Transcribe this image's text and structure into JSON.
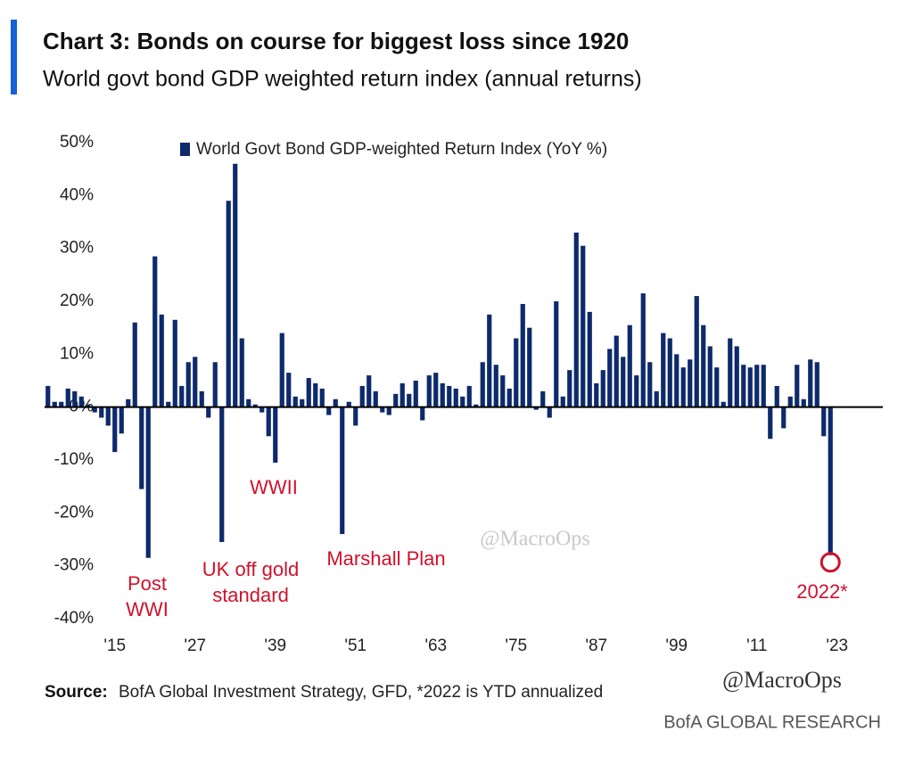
{
  "chart_data": {
    "type": "bar",
    "title": "Chart 3: Bonds on course for biggest loss since 1920",
    "subtitle": "World govt bond GDP weighted return index (annual returns)",
    "x": [
      1905,
      1906,
      1907,
      1908,
      1909,
      1910,
      1911,
      1912,
      1913,
      1914,
      1915,
      1916,
      1917,
      1918,
      1919,
      1920,
      1921,
      1922,
      1923,
      1924,
      1925,
      1926,
      1927,
      1928,
      1929,
      1930,
      1931,
      1932,
      1933,
      1934,
      1935,
      1936,
      1937,
      1938,
      1939,
      1940,
      1941,
      1942,
      1943,
      1944,
      1945,
      1946,
      1947,
      1948,
      1949,
      1950,
      1951,
      1952,
      1953,
      1954,
      1955,
      1956,
      1957,
      1958,
      1959,
      1960,
      1961,
      1962,
      1963,
      1964,
      1965,
      1966,
      1967,
      1968,
      1969,
      1970,
      1971,
      1972,
      1973,
      1974,
      1975,
      1976,
      1977,
      1978,
      1979,
      1980,
      1981,
      1982,
      1983,
      1984,
      1985,
      1986,
      1987,
      1988,
      1989,
      1990,
      1991,
      1992,
      1993,
      1994,
      1995,
      1996,
      1997,
      1998,
      1999,
      2000,
      2001,
      2002,
      2003,
      2004,
      2005,
      2006,
      2007,
      2008,
      2009,
      2010,
      2011,
      2012,
      2013,
      2014,
      2015,
      2016,
      2017,
      2018,
      2019,
      2020,
      2021,
      2022
    ],
    "series": [
      {
        "name": "World Govt Bond GDP-weighted Return Index (YoY %)",
        "color": "#0d2a6b",
        "values": [
          4,
          1,
          1,
          3.5,
          3,
          2,
          0.5,
          -1,
          -2,
          -3.5,
          -8.5,
          -5,
          1.5,
          16,
          -15.5,
          -28.5,
          28.5,
          17.5,
          1,
          16.5,
          4,
          8.5,
          9.5,
          3,
          -2,
          8.5,
          -25.5,
          39,
          46,
          13,
          1.5,
          0.5,
          -1,
          -5.5,
          -10.5,
          14,
          6.5,
          2,
          1.5,
          5.5,
          4.5,
          3.5,
          -1.5,
          1.5,
          -24,
          1,
          -3.5,
          4,
          6,
          3,
          -1,
          -1.5,
          2.5,
          4.5,
          2.5,
          5,
          -2.5,
          6,
          6.5,
          4.5,
          4,
          3.5,
          2,
          4,
          0.5,
          8.5,
          17.5,
          8,
          6,
          3.5,
          13,
          19.5,
          15,
          -0.5,
          3,
          -2,
          20,
          2,
          7,
          33,
          30.5,
          18,
          4.5,
          7,
          11,
          13.5,
          9.5,
          15.5,
          6,
          21.5,
          8.5,
          3,
          14,
          13,
          10,
          7.5,
          9,
          21,
          15.5,
          11.5,
          7.5,
          1,
          13,
          11.5,
          8,
          7.5,
          8,
          8,
          -6,
          4,
          -4,
          2,
          8,
          1.5,
          9,
          8.5,
          -5.5,
          -28
        ]
      }
    ],
    "xlim": [
      1904.5,
      2030.5
    ],
    "xticks": [
      {
        "value": 1915,
        "label": "'15"
      },
      {
        "value": 1927,
        "label": "'27"
      },
      {
        "value": 1939,
        "label": "'39"
      },
      {
        "value": 1951,
        "label": "'51"
      },
      {
        "value": 1963,
        "label": "'63"
      },
      {
        "value": 1975,
        "label": "'75"
      },
      {
        "value": 1987,
        "label": "'87"
      },
      {
        "value": 1999,
        "label": "'99"
      },
      {
        "value": 2011,
        "label": "'11"
      },
      {
        "value": 2023,
        "label": "'23"
      }
    ],
    "ylim": [
      -40,
      50
    ],
    "yticks": [
      {
        "value": 50,
        "label": "50%"
      },
      {
        "value": 40,
        "label": "40%"
      },
      {
        "value": 30,
        "label": "30%"
      },
      {
        "value": 20,
        "label": "20%"
      },
      {
        "value": 10,
        "label": "10%"
      },
      {
        "value": 0,
        "label": "0%"
      },
      {
        "value": -10,
        "label": "-10%"
      },
      {
        "value": -20,
        "label": "-20%"
      },
      {
        "value": -30,
        "label": "-30%"
      },
      {
        "value": -40,
        "label": "-40%"
      }
    ],
    "grid": false,
    "legend": "top",
    "annotations": [
      [
        "Post",
        "WWI"
      ],
      [
        "UK off gold",
        "standard"
      ],
      [
        "WWII"
      ],
      [
        "Marshall Plan"
      ],
      [
        "2022*"
      ]
    ],
    "annotation_color": "#d0112b",
    "watermark": "@MacroOps",
    "source_label": "Source:",
    "source": "BofA Global Investment Strategy, GFD, *2022  is YTD annualized",
    "brand": "BofA GLOBAL RESEARCH"
  }
}
